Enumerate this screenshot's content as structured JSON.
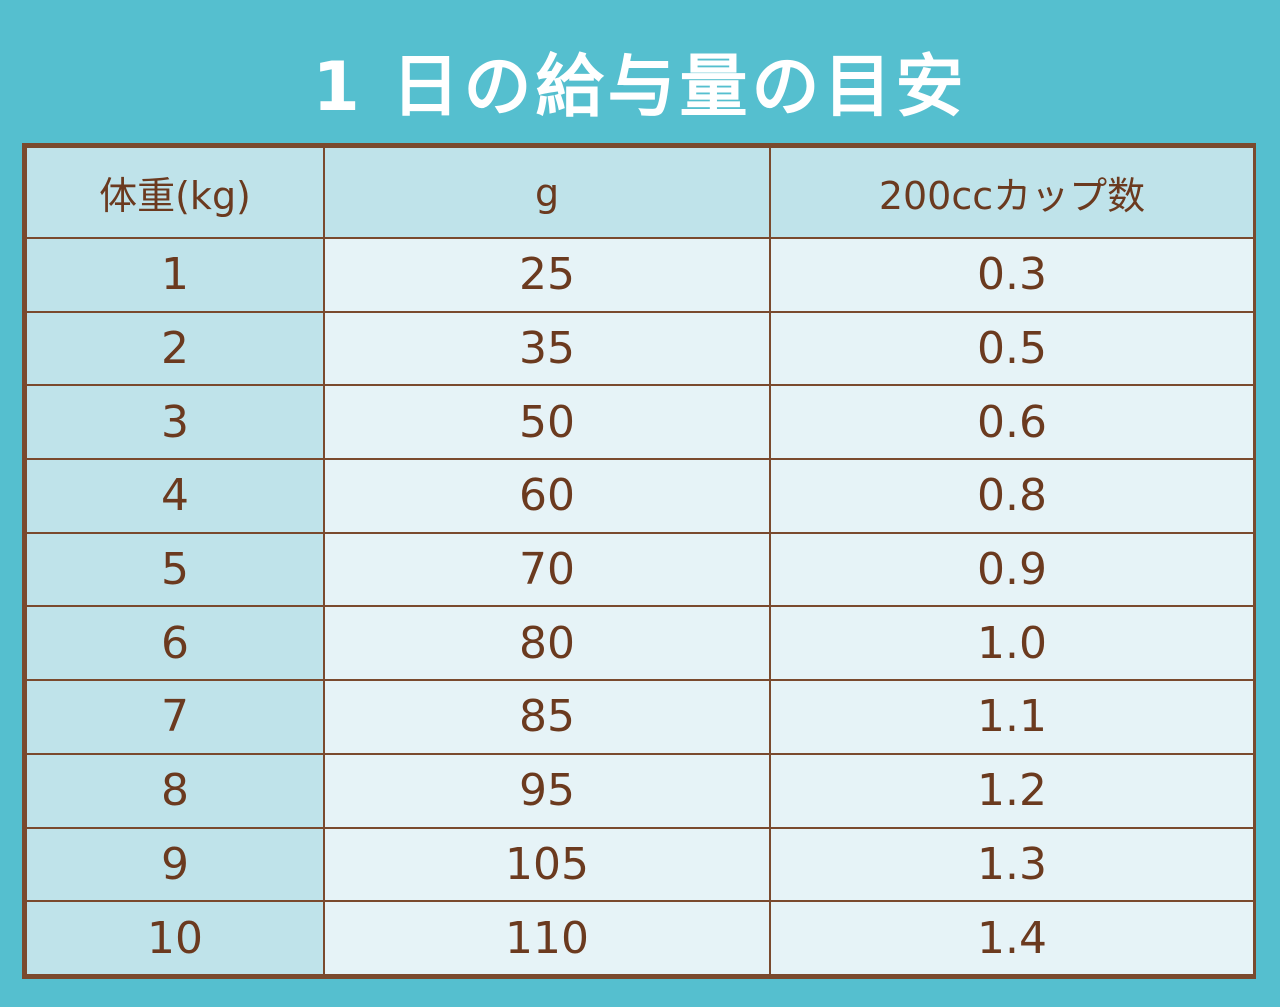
{
  "chart_data": {
    "type": "table",
    "title": "1 日の給与量の目安",
    "columns": [
      "体重(kg)",
      "g",
      "200ccカップ数"
    ],
    "rows": [
      [
        "1",
        "25",
        "0.3"
      ],
      [
        "2",
        "35",
        "0.5"
      ],
      [
        "3",
        "50",
        "0.6"
      ],
      [
        "4",
        "60",
        "0.8"
      ],
      [
        "5",
        "70",
        "0.9"
      ],
      [
        "6",
        "80",
        "1.0"
      ],
      [
        "7",
        "85",
        "1.1"
      ],
      [
        "8",
        "95",
        "1.2"
      ],
      [
        "9",
        "105",
        "1.3"
      ],
      [
        "10",
        "110",
        "1.4"
      ]
    ]
  },
  "colors": {
    "background": "#55bfcf",
    "border": "#7a4a2e",
    "text": "#6b3a1f",
    "header_cell": "#bfe3ea",
    "body_cell": "#e6f3f7"
  }
}
